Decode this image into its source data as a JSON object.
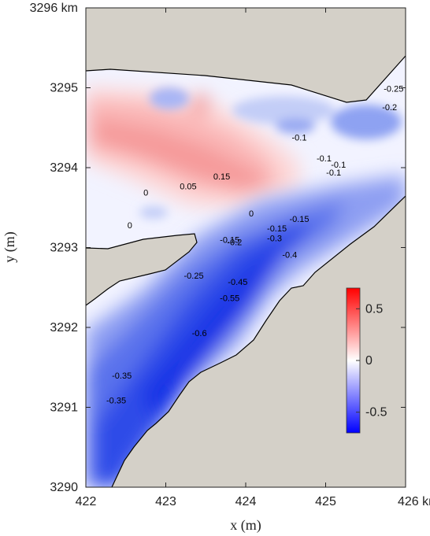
{
  "chart_data": {
    "type": "heatmap",
    "title": "",
    "xlabel": "x (m)",
    "ylabel": "y (m)",
    "xlim": [
      422,
      426
    ],
    "ylim": [
      3290,
      3296
    ],
    "x_ticks": [
      {
        "value": 422,
        "label": "422"
      },
      {
        "value": 423,
        "label": "423"
      },
      {
        "value": 424,
        "label": "424"
      },
      {
        "value": 425,
        "label": "425"
      },
      {
        "value": 426,
        "label": "426 km"
      }
    ],
    "y_ticks": [
      {
        "value": 3290,
        "label": "3290"
      },
      {
        "value": 3291,
        "label": "3291"
      },
      {
        "value": 3292,
        "label": "3292"
      },
      {
        "value": 3293,
        "label": "3293"
      },
      {
        "value": 3294,
        "label": "3294"
      },
      {
        "value": 3295,
        "label": "3295"
      },
      {
        "value": 3296,
        "label": "3296 km"
      }
    ],
    "colorbar": {
      "min": -0.7,
      "max": 0.7,
      "ticks": [
        {
          "value": 0.5,
          "label": "0.5"
        },
        {
          "value": 0,
          "label": "0"
        },
        {
          "value": -0.5,
          "label": "-0.5"
        }
      ],
      "colors": {
        "negative": "#0000ff",
        "zero": "#ffffff",
        "positive": "#ff0000"
      }
    },
    "land_color": "#d4d0c8",
    "grid": false,
    "contour_labels": [
      {
        "x": 425.85,
        "y": 3294.95,
        "text": "-0.25"
      },
      {
        "x": 425.8,
        "y": 3294.72,
        "text": "-0.2"
      },
      {
        "x": 424.67,
        "y": 3294.34,
        "text": "-0.1"
      },
      {
        "x": 424.98,
        "y": 3294.08,
        "text": "-0.1"
      },
      {
        "x": 425.16,
        "y": 3294.0,
        "text": "-0.1"
      },
      {
        "x": 425.1,
        "y": 3293.9,
        "text": "-0.1"
      },
      {
        "x": 423.7,
        "y": 3293.85,
        "text": "0.15"
      },
      {
        "x": 423.28,
        "y": 3293.73,
        "text": "0.05"
      },
      {
        "x": 422.75,
        "y": 3293.65,
        "text": "0"
      },
      {
        "x": 424.07,
        "y": 3293.39,
        "text": "0"
      },
      {
        "x": 422.55,
        "y": 3293.24,
        "text": "0"
      },
      {
        "x": 424.67,
        "y": 3293.32,
        "text": "-0.15"
      },
      {
        "x": 424.39,
        "y": 3293.2,
        "text": "-0.15"
      },
      {
        "x": 423.8,
        "y": 3293.06,
        "text": "-0.15"
      },
      {
        "x": 423.86,
        "y": 3293.03,
        "text": "-0.2"
      },
      {
        "x": 424.36,
        "y": 3293.08,
        "text": "-0.3"
      },
      {
        "x": 424.55,
        "y": 3292.87,
        "text": "-0.4"
      },
      {
        "x": 423.35,
        "y": 3292.61,
        "text": "-0.25"
      },
      {
        "x": 423.9,
        "y": 3292.53,
        "text": "-0.45"
      },
      {
        "x": 423.8,
        "y": 3292.33,
        "text": "-0.55"
      },
      {
        "x": 423.42,
        "y": 3291.89,
        "text": "-0.6"
      },
      {
        "x": 422.45,
        "y": 3291.36,
        "text": "-0.35"
      },
      {
        "x": 422.38,
        "y": 3291.05,
        "text": "-0.35"
      }
    ]
  }
}
